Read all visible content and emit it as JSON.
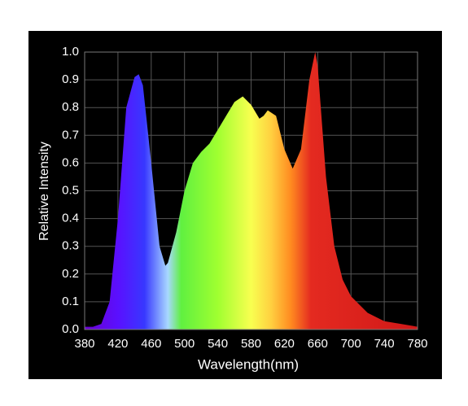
{
  "chart_data": {
    "type": "area",
    "x_label": "Wavelength(nm)",
    "y_label": "Relative Intensity",
    "x": [
      380,
      390,
      400,
      410,
      420,
      430,
      440,
      445,
      450,
      460,
      470,
      477,
      480,
      490,
      500,
      510,
      520,
      530,
      540,
      550,
      560,
      570,
      580,
      590,
      595,
      600,
      610,
      620,
      630,
      640,
      650,
      657,
      660,
      670,
      680,
      690,
      700,
      720,
      740,
      760,
      780
    ],
    "values": [
      0.01,
      0.01,
      0.02,
      0.1,
      0.4,
      0.8,
      0.91,
      0.92,
      0.88,
      0.6,
      0.3,
      0.23,
      0.24,
      0.35,
      0.5,
      0.6,
      0.64,
      0.67,
      0.72,
      0.77,
      0.82,
      0.84,
      0.81,
      0.76,
      0.77,
      0.79,
      0.77,
      0.65,
      0.58,
      0.65,
      0.9,
      1.0,
      0.95,
      0.55,
      0.3,
      0.18,
      0.12,
      0.06,
      0.03,
      0.02,
      0.01
    ],
    "xlim": [
      380,
      780
    ],
    "ylim": [
      0,
      1
    ],
    "xticks": [
      380,
      420,
      460,
      500,
      540,
      580,
      620,
      660,
      700,
      740,
      780
    ],
    "yticks": [
      {
        "value": 0,
        "label": "0.0"
      },
      0.1,
      0.2,
      0.3,
      0.4,
      0.5,
      0.6,
      0.7,
      0.8,
      0.9,
      {
        "value": 1,
        "label": "1.0"
      }
    ],
    "grid": true
  }
}
